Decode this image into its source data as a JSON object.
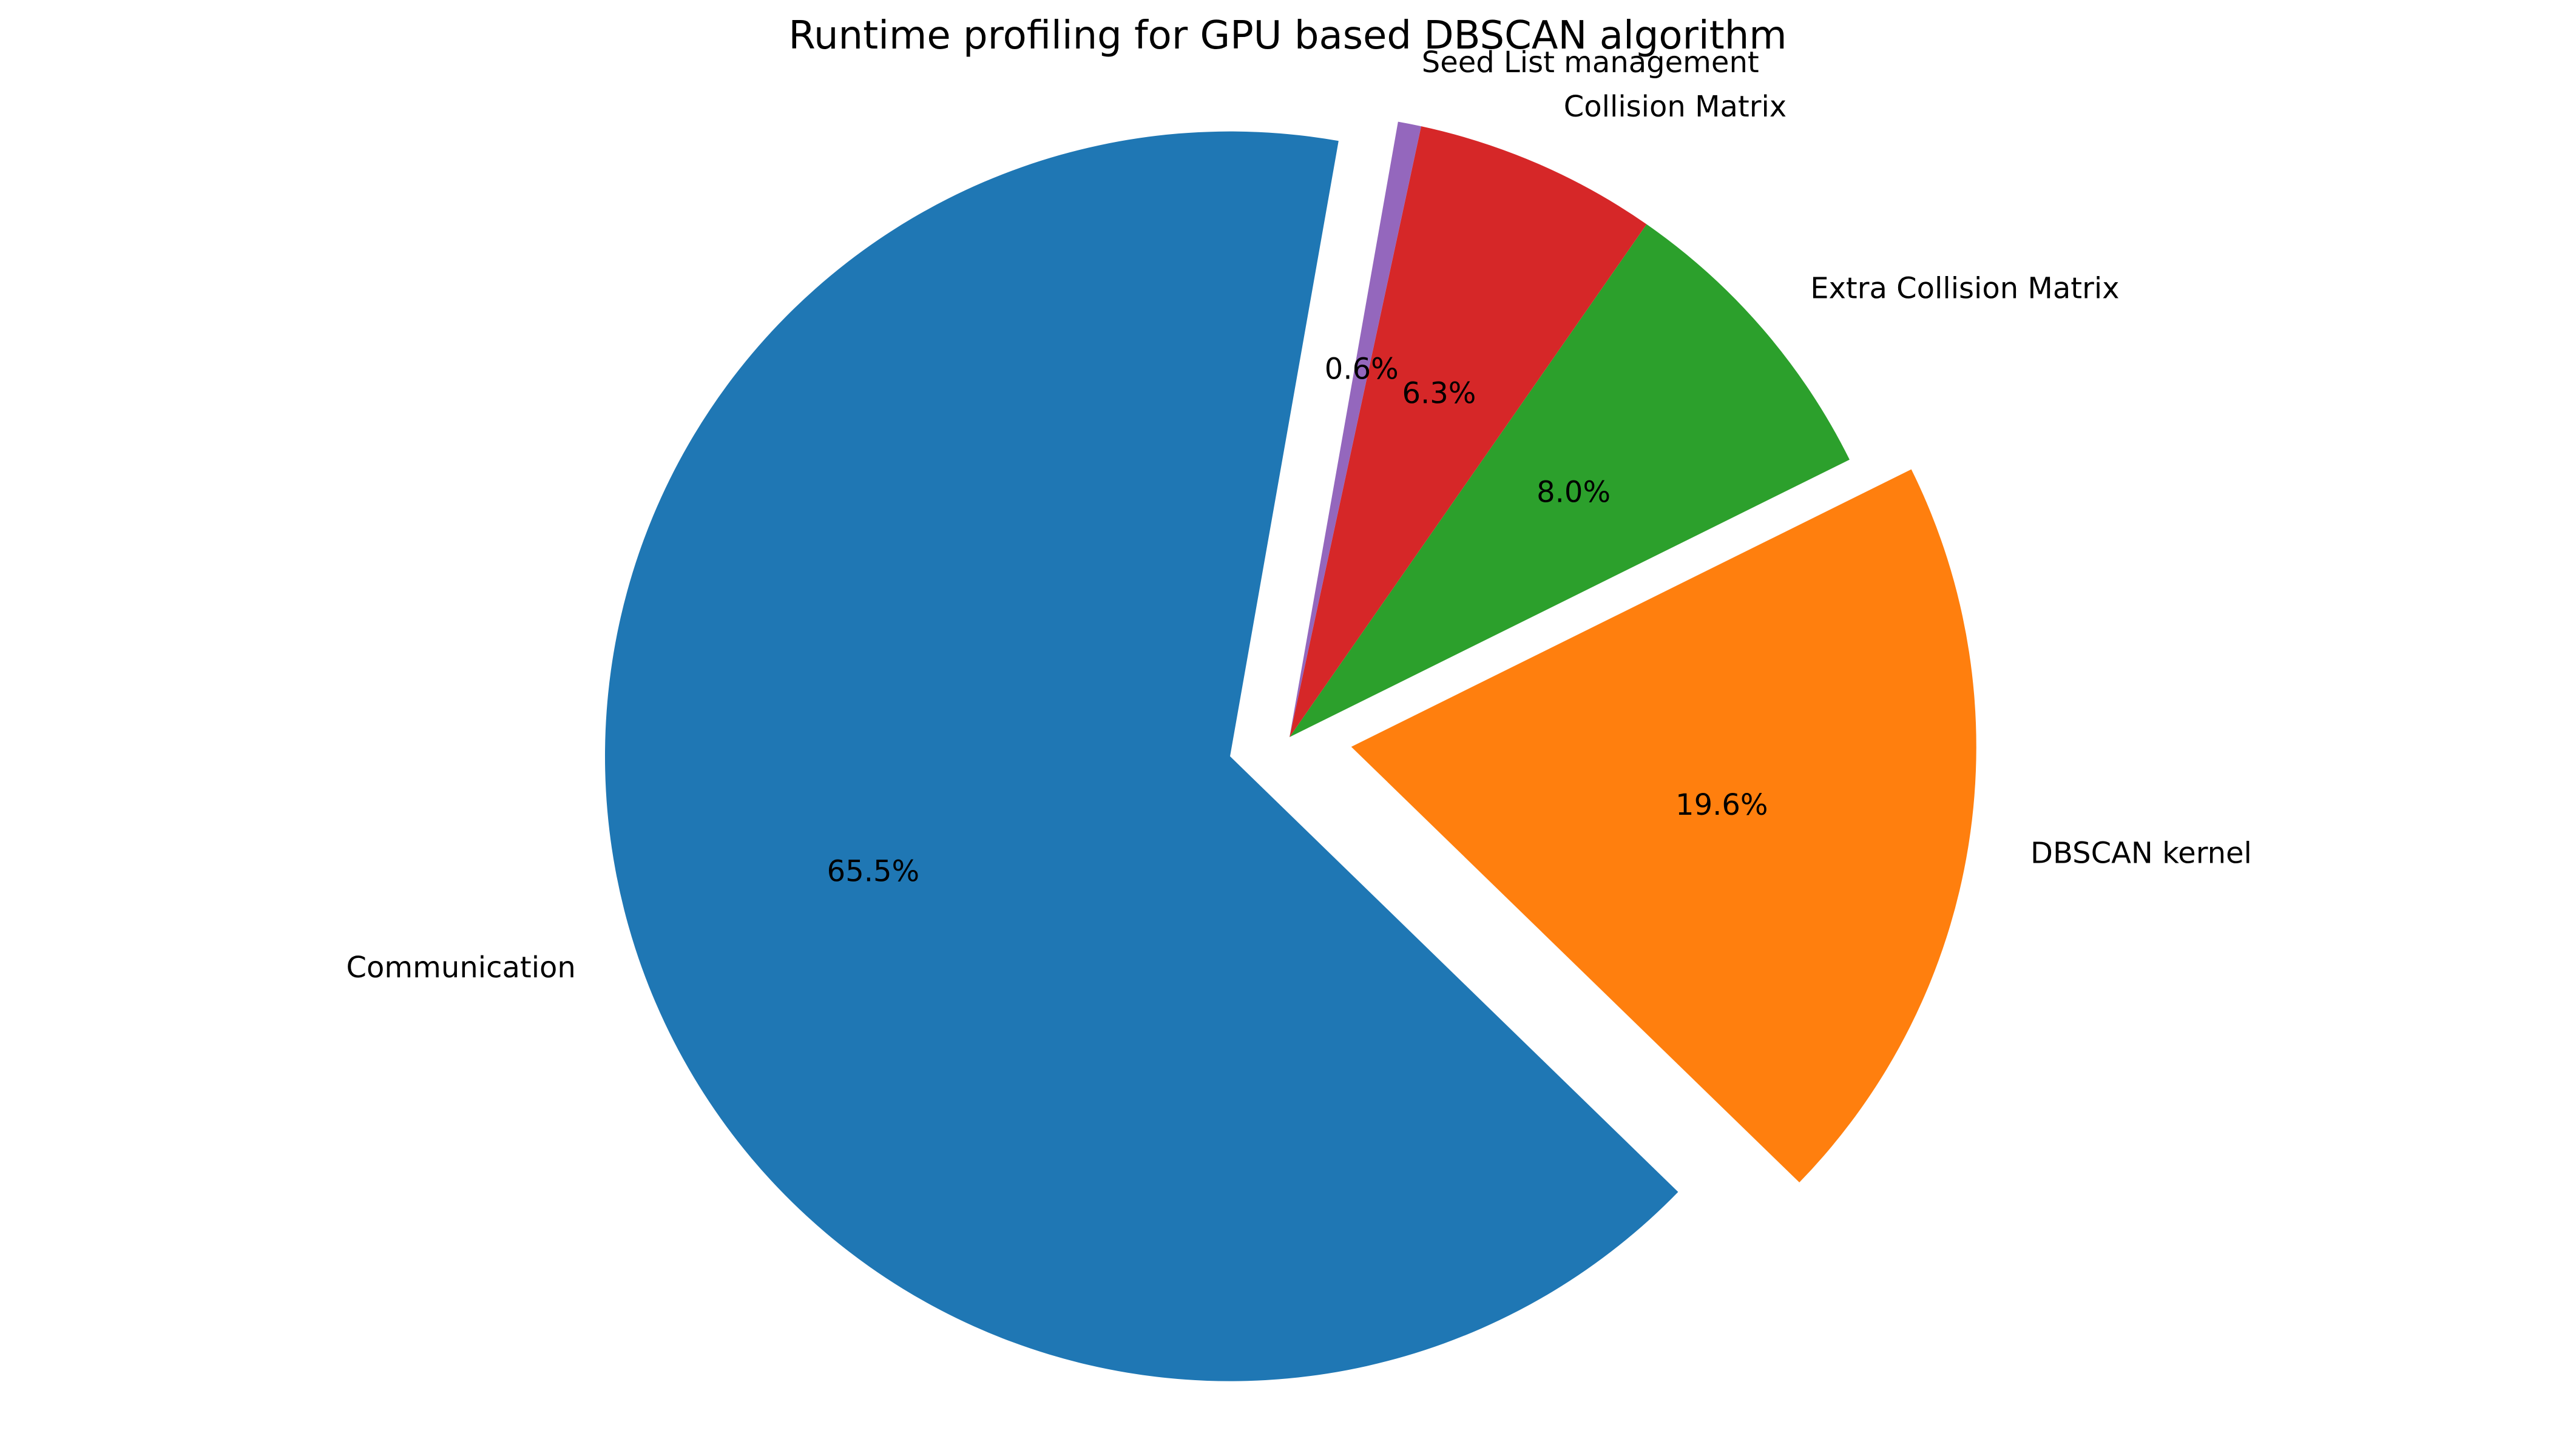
{
  "chart_data": {
    "type": "pie",
    "title": "Runtime profiling for GPU based DBSCAN algorithm",
    "categories": [
      "Communication",
      "DBSCAN kernel",
      "Extra Collision Matrix",
      "Collision Matrix",
      "Seed List management"
    ],
    "values": [
      65.5,
      19.6,
      8.0,
      6.3,
      0.6
    ],
    "value_labels": [
      "65.5%",
      "19.6%",
      "8.0%",
      "6.3%",
      "0.6%"
    ],
    "colors": [
      "#1f77b4",
      "#ff7f0e",
      "#2ca02c",
      "#d62728",
      "#9467bd"
    ],
    "explode": [
      0.1,
      0.1,
      0,
      0,
      0
    ],
    "start_angle": 80,
    "direction": "counterclockwise"
  }
}
